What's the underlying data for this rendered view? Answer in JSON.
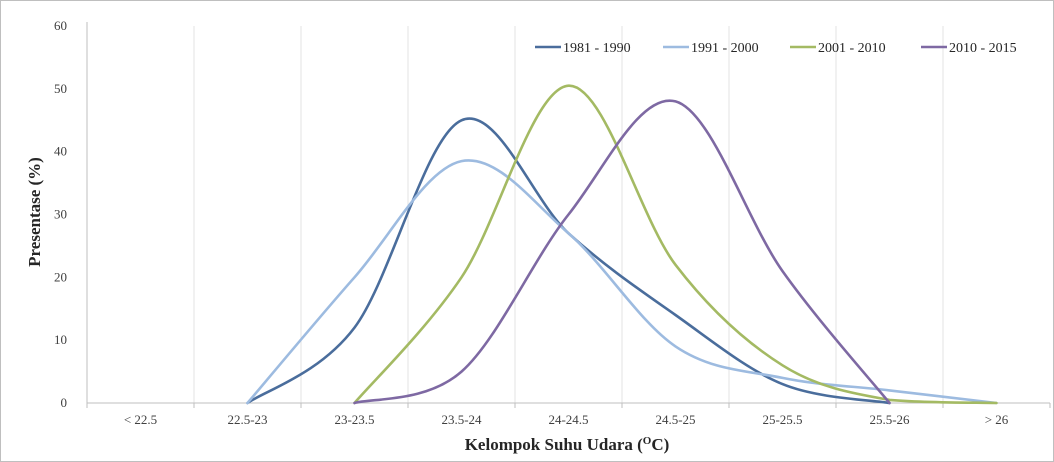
{
  "chart_data": {
    "type": "line",
    "categories": [
      "< 22.5",
      "22.5-23",
      "23-23.5",
      "23.5-24",
      "24-24.5",
      "24.5-25",
      "25-25.5",
      "25.5-26",
      "> 26"
    ],
    "series": [
      {
        "name": "1981 - 1990",
        "color": "#4a6d9c",
        "values": [
          0,
          0,
          12,
          45,
          27,
          14,
          3,
          0,
          0
        ]
      },
      {
        "name": "1991 - 2000",
        "color": "#9dbbe0",
        "values": [
          0,
          0,
          20,
          38.5,
          27,
          9,
          4,
          2,
          0
        ]
      },
      {
        "name": "2001 - 2010",
        "color": "#a4ba63",
        "values": [
          0,
          0,
          0,
          20,
          50.5,
          22,
          6,
          0.5,
          0
        ]
      },
      {
        "name": "2010 - 2015",
        "color": "#7e69a3",
        "values": [
          0,
          0,
          0,
          5,
          30,
          48,
          21,
          0,
          0
        ]
      }
    ],
    "xlabel_main": "Kelompok Suhu Udara (",
    "xlabel_sup": "O",
    "xlabel_end": "C)",
    "ylabel": "Presentase (%)",
    "ylim": [
      0,
      60
    ],
    "yticks": [
      0,
      10,
      20,
      30,
      40,
      50,
      60
    ],
    "grid": "vertical",
    "legend_position": "top-right"
  }
}
